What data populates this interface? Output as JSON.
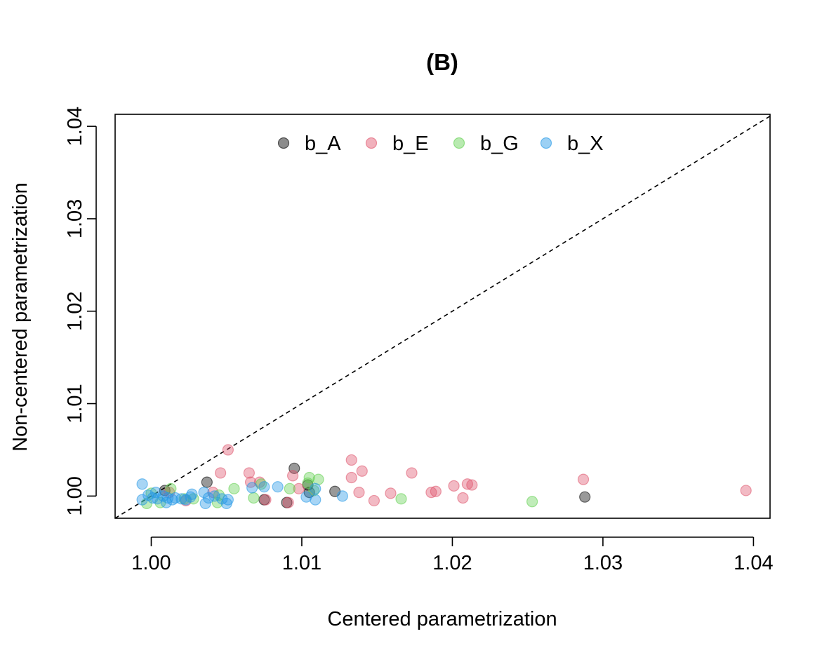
{
  "chart_data": {
    "type": "scatter",
    "title": "(B)",
    "xlabel": "Centered parametrization",
    "ylabel": "Non-centered parametrization",
    "xlim": [
      0.9976,
      1.0411
    ],
    "ylim": [
      0.9976,
      1.0413
    ],
    "xticks": [
      "1.00",
      "1.01",
      "1.02",
      "1.03",
      "1.04"
    ],
    "yticks": [
      "1.00",
      "1.01",
      "1.02",
      "1.03",
      "1.04"
    ],
    "grid": false,
    "legend_position": "top",
    "reference_line": "y = x (dashed)",
    "series": [
      {
        "name": "b_A",
        "color": "#000000",
        "points": [
          [
            1.0009,
            1.0006
          ],
          [
            1.0037,
            1.0015
          ],
          [
            1.0075,
            0.9996
          ],
          [
            1.009,
            0.9993
          ],
          [
            1.0095,
            1.003
          ],
          [
            1.0104,
            1.0012
          ],
          [
            1.0105,
            1.0004
          ],
          [
            1.0122,
            1.0005
          ],
          [
            1.0288,
            0.9999
          ]
        ]
      },
      {
        "name": "b_E",
        "color": "#DF536B",
        "points": [
          [
            1.0012,
            1.0004
          ],
          [
            1.0023,
            0.9995
          ],
          [
            1.0041,
            1.0004
          ],
          [
            1.0046,
            1.0025
          ],
          [
            1.0051,
            1.005
          ],
          [
            1.0065,
            1.0025
          ],
          [
            1.0066,
            1.0015
          ],
          [
            1.0072,
            1.0015
          ],
          [
            1.0076,
            0.9996
          ],
          [
            1.0091,
            0.9993
          ],
          [
            1.0094,
            1.0022
          ],
          [
            1.0098,
            1.0008
          ],
          [
            1.0133,
            1.0039
          ],
          [
            1.0133,
            1.002
          ],
          [
            1.0138,
            1.0004
          ],
          [
            1.014,
            1.0027
          ],
          [
            1.0148,
            0.9995
          ],
          [
            1.0159,
            1.0003
          ],
          [
            1.0173,
            1.0025
          ],
          [
            1.0186,
            1.0004
          ],
          [
            1.0189,
            1.0005
          ],
          [
            1.0201,
            1.0011
          ],
          [
            1.0207,
            0.9998
          ],
          [
            1.021,
            1.0013
          ],
          [
            1.0213,
            1.0012
          ],
          [
            1.0287,
            1.0018
          ],
          [
            1.0395,
            1.0006
          ]
        ]
      },
      {
        "name": "b_G",
        "color": "#61D04F",
        "points": [
          [
            0.9997,
            0.9992
          ],
          [
            1.0,
            1.0003
          ],
          [
            1.0006,
            0.9993
          ],
          [
            1.0013,
            1.0008
          ],
          [
            1.0022,
            0.9997
          ],
          [
            1.0028,
            0.9997
          ],
          [
            1.0044,
            0.9993
          ],
          [
            1.0045,
            1.0001
          ],
          [
            1.0055,
            1.0008
          ],
          [
            1.0068,
            0.9998
          ],
          [
            1.0073,
            1.0013
          ],
          [
            1.0092,
            1.0008
          ],
          [
            1.0104,
            1.0014
          ],
          [
            1.0105,
            1.002
          ],
          [
            1.0108,
            1.0006
          ],
          [
            1.0111,
            1.0018
          ],
          [
            1.0166,
            0.9997
          ],
          [
            1.0253,
            0.9994
          ]
        ]
      },
      {
        "name": "b_X",
        "color": "#2297E6",
        "points": [
          [
            0.9994,
            0.9996
          ],
          [
            0.9994,
            1.0013
          ],
          [
            0.9998,
            1.0001
          ],
          [
            1.0001,
            0.9998
          ],
          [
            1.0003,
            1.0004
          ],
          [
            1.0004,
            0.9997
          ],
          [
            1.0008,
            1.0
          ],
          [
            1.001,
            0.9993
          ],
          [
            1.0011,
            0.9998
          ],
          [
            1.0014,
            0.9996
          ],
          [
            1.0016,
            0.9998
          ],
          [
            1.002,
            0.9997
          ],
          [
            1.0023,
            0.9996
          ],
          [
            1.0026,
            0.9999
          ],
          [
            1.0027,
            1.0002
          ],
          [
            1.0035,
            1.0004
          ],
          [
            1.0036,
            0.9992
          ],
          [
            1.0038,
            0.9998
          ],
          [
            1.0042,
            1.0
          ],
          [
            1.0047,
            0.9997
          ],
          [
            1.005,
            0.9992
          ],
          [
            1.0051,
            0.9996
          ],
          [
            1.0067,
            1.0009
          ],
          [
            1.0075,
            1.001
          ],
          [
            1.0084,
            1.001
          ],
          [
            1.0103,
            0.9999
          ],
          [
            1.0109,
            1.0008
          ],
          [
            1.0109,
            0.9996
          ],
          [
            1.0127,
            1.0
          ]
        ]
      }
    ]
  }
}
